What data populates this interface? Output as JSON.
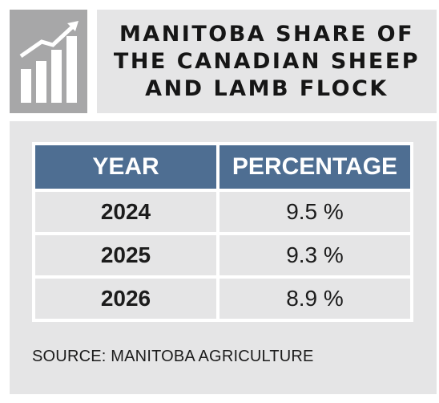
{
  "title": "MANITOBA SHARE OF THE CANADIAN SHEEP AND LAMB FLOCK",
  "icon": "rising-bar-chart-icon",
  "colors": {
    "header_fill": "#4e6e92",
    "panel_fill": "#e5e5e6",
    "icon_fill": "#a7a7a8"
  },
  "table": {
    "headers": [
      "YEAR",
      "PERCENTAGE"
    ],
    "rows": [
      {
        "year": "2024",
        "percentage": "9.5 %"
      },
      {
        "year": "2025",
        "percentage": "9.3 %"
      },
      {
        "year": "2026",
        "percentage": "8.9 %"
      }
    ]
  },
  "source": "SOURCE: MANITOBA AGRICULTURE",
  "chart_data": {
    "type": "table",
    "title": "MANITOBA SHARE OF THE CANADIAN SHEEP AND LAMB FLOCK",
    "columns": [
      "YEAR",
      "PERCENTAGE"
    ],
    "x": [
      2024,
      2025,
      2026
    ],
    "values": [
      9.5,
      9.3,
      8.9
    ],
    "unit": "%"
  }
}
